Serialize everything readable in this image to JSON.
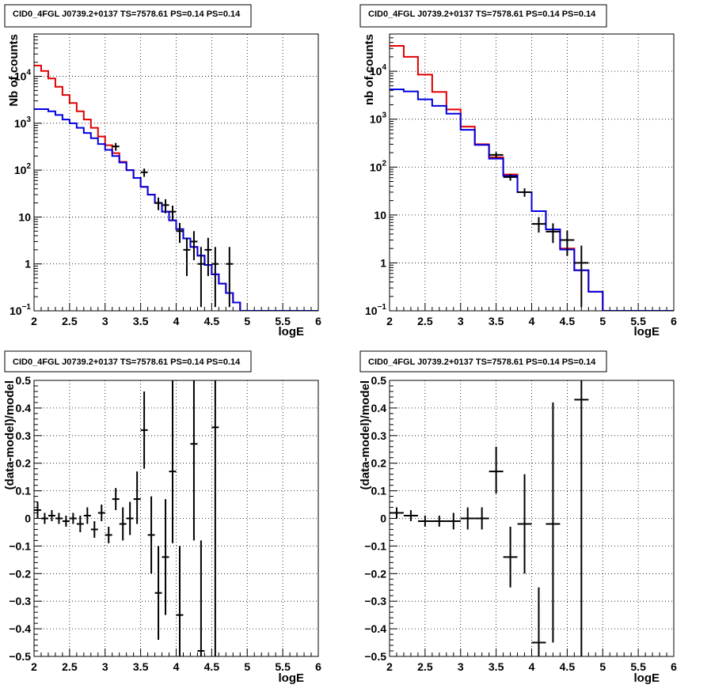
{
  "chart_data": [
    {
      "type": "line",
      "title": "CID0_4FGL J0739.2+0137 TS=7578.61 PS=0.14 PS=0.14",
      "xlabel": "logE",
      "ylabel": "Nb of counts",
      "xscale": "linear",
      "yscale": "log",
      "xlim": [
        2,
        6
      ],
      "ylim": [
        0.1,
        80000
      ],
      "grid": true,
      "xticks": [
        "2",
        "2.5",
        "3",
        "3.5",
        "4",
        "4.5",
        "5",
        "5.5",
        "6"
      ],
      "yticks": [
        {
          "value": 0.1,
          "label": "10",
          "sup": "−1"
        },
        {
          "value": 1,
          "label": "1",
          "sup": ""
        },
        {
          "value": 10,
          "label": "10",
          "sup": ""
        },
        {
          "value": 100,
          "label": "10",
          "sup": "2"
        },
        {
          "value": 1000,
          "label": "10",
          "sup": "3"
        },
        {
          "value": 10000,
          "label": "10",
          "sup": "4"
        }
      ],
      "series": [
        {
          "kind": "step",
          "color": "#e00000",
          "x_edges": [
            2.0,
            2.1,
            2.2,
            2.3,
            2.4,
            2.5,
            2.6,
            2.7,
            2.8,
            2.9,
            3.0,
            3.1,
            3.2,
            3.3,
            3.4,
            3.5,
            3.6,
            3.7,
            3.8,
            3.9,
            4.0,
            4.1,
            4.2,
            4.3,
            4.4,
            4.5,
            4.6,
            4.7,
            4.8,
            4.9,
            5.0,
            5.1,
            5.2,
            5.3,
            5.4,
            5.5,
            5.6,
            5.7,
            5.8,
            5.9,
            6.0
          ],
          "values": [
            17000,
            13000,
            9000,
            6000,
            4000,
            2700,
            1800,
            1200,
            800,
            520,
            340,
            230,
            150,
            100,
            68,
            44,
            30,
            20,
            13,
            8.5,
            5.5,
            3.5,
            2.3,
            1.5,
            0.95,
            0.6,
            0.38,
            0.24,
            0.15,
            0.09,
            0.09,
            0.09,
            0.09,
            0.09,
            0.09,
            0.09,
            0.09,
            0.09,
            0.09,
            0.09
          ]
        },
        {
          "kind": "step",
          "color": "#0000e0",
          "x_edges": [
            2.0,
            2.1,
            2.2,
            2.3,
            2.4,
            2.5,
            2.6,
            2.7,
            2.8,
            2.9,
            3.0,
            3.1,
            3.2,
            3.3,
            3.4,
            3.5,
            3.6,
            3.7,
            3.8,
            3.9,
            4.0,
            4.1,
            4.2,
            4.3,
            4.4,
            4.5,
            4.6,
            4.7,
            4.8,
            4.9,
            5.0,
            5.1,
            5.2,
            5.3,
            5.4,
            5.5,
            5.6,
            5.7,
            5.8,
            5.9,
            6.0
          ],
          "values": [
            2000,
            2000,
            1800,
            1500,
            1200,
            1000,
            800,
            620,
            480,
            360,
            270,
            200,
            145,
            100,
            68,
            44,
            30,
            20,
            13,
            8.5,
            5.5,
            3.5,
            2.3,
            1.5,
            0.95,
            0.6,
            0.38,
            0.24,
            0.15,
            0.1,
            0.1,
            0.1,
            0.1,
            0.1,
            0.1,
            0.1,
            0.1,
            0.1,
            0.1,
            0.1
          ]
        },
        {
          "kind": "errorbar",
          "color": "#000000",
          "x": [
            3.15,
            3.55,
            3.75,
            3.85,
            3.95,
            4.05,
            4.15,
            4.25,
            4.35,
            4.45,
            4.55,
            4.75
          ],
          "xerr": 0.05,
          "y": [
            320,
            90,
            20,
            18,
            13,
            5,
            2,
            3,
            1,
            2,
            1,
            1
          ],
          "ylo": [
            260,
            72,
            14,
            12,
            8.5,
            2.8,
            0.55,
            1.2,
            0.12,
            0.55,
            0.12,
            0.12
          ],
          "yhi": [
            380,
            108,
            26,
            24,
            17.5,
            7.5,
            3.6,
            5,
            2.3,
            3.6,
            2.3,
            2.3
          ]
        }
      ]
    },
    {
      "type": "line",
      "title": "CID0_4FGL J0739.2+0137 TS=7578.61 PS=0.14 PS=0.14",
      "xlabel": "logE",
      "ylabel": "nb of counts",
      "xscale": "linear",
      "yscale": "log",
      "xlim": [
        2,
        6
      ],
      "ylim": [
        0.1,
        60000
      ],
      "grid": true,
      "xticks": [
        "2",
        "2.5",
        "3",
        "3.5",
        "4",
        "4.5",
        "5",
        "5.5",
        "6"
      ],
      "yticks": [
        {
          "value": 0.1,
          "label": "10",
          "sup": "−1"
        },
        {
          "value": 1,
          "label": "1",
          "sup": ""
        },
        {
          "value": 10,
          "label": "10",
          "sup": ""
        },
        {
          "value": 100,
          "label": "10",
          "sup": "2"
        },
        {
          "value": 1000,
          "label": "10",
          "sup": "3"
        },
        {
          "value": 10000,
          "label": "10",
          "sup": "4"
        }
      ],
      "series": [
        {
          "kind": "step",
          "color": "#e00000",
          "x_edges": [
            2.0,
            2.2,
            2.4,
            2.6,
            2.8,
            3.0,
            3.2,
            3.4,
            3.6,
            3.8,
            4.0,
            4.2,
            4.4,
            4.6,
            4.8,
            5.0,
            5.2,
            5.4,
            5.6,
            5.8,
            6.0
          ],
          "values": [
            34000,
            20000,
            8500,
            3700,
            1600,
            700,
            300,
            160,
            70,
            30,
            12,
            5,
            2,
            0.7,
            0.25,
            0.09,
            0.09,
            0.09,
            0.09,
            0.09
          ]
        },
        {
          "kind": "step",
          "color": "#0000e0",
          "x_edges": [
            2.0,
            2.2,
            2.4,
            2.6,
            2.8,
            3.0,
            3.2,
            3.4,
            3.6,
            3.8,
            4.0,
            4.2,
            4.4,
            4.6,
            4.8,
            5.0,
            5.2,
            5.4,
            5.6,
            5.8,
            6.0
          ],
          "values": [
            4200,
            3800,
            2600,
            1900,
            1300,
            600,
            290,
            150,
            66,
            30,
            12,
            5,
            1.9,
            0.7,
            0.25,
            0.1,
            0.1,
            0.1,
            0.1,
            0.1
          ]
        },
        {
          "kind": "errorbar",
          "color": "#000000",
          "x": [
            3.5,
            3.7,
            3.9,
            4.1,
            4.3,
            4.5,
            4.7
          ],
          "xerr": 0.1,
          "y": [
            180,
            62,
            30,
            6.5,
            4.5,
            3,
            1
          ],
          "ylo": [
            155,
            52,
            24,
            4.3,
            2.6,
            1.4,
            0.12
          ],
          "yhi": [
            205,
            72,
            36,
            9,
            6.7,
            4.7,
            2.3
          ]
        }
      ]
    },
    {
      "type": "scatter",
      "title": "CID0_4FGL J0739.2+0137 TS=7578.61 PS=0.14 PS=0.14",
      "xlabel": "logE",
      "ylabel": "(data-model)/model",
      "xscale": "linear",
      "yscale": "linear",
      "xlim": [
        2,
        6
      ],
      "ylim": [
        -0.5,
        0.5
      ],
      "grid": true,
      "xticks": [
        "2",
        "2.5",
        "3",
        "3.5",
        "4",
        "4.5",
        "5",
        "5.5",
        "6"
      ],
      "yticks": [
        {
          "value": -0.5,
          "label": "−0.5"
        },
        {
          "value": -0.4,
          "label": "−0.4"
        },
        {
          "value": -0.3,
          "label": "−0.3"
        },
        {
          "value": -0.2,
          "label": "−0.2"
        },
        {
          "value": -0.1,
          "label": "−0.1"
        },
        {
          "value": 0,
          "label": "0"
        },
        {
          "value": 0.1,
          "label": "0.1"
        },
        {
          "value": 0.2,
          "label": "0.2"
        },
        {
          "value": 0.3,
          "label": "0.3"
        },
        {
          "value": 0.4,
          "label": "0.4"
        },
        {
          "value": 0.5,
          "label": "0.5"
        }
      ],
      "series": [
        {
          "kind": "errorbar",
          "color": "#000000",
          "x": [
            2.05,
            2.15,
            2.25,
            2.35,
            2.45,
            2.55,
            2.65,
            2.75,
            2.85,
            2.95,
            3.05,
            3.15,
            3.25,
            3.35,
            3.45,
            3.55,
            3.65,
            3.75,
            3.85,
            3.95,
            4.05,
            4.25,
            4.35,
            4.55
          ],
          "xerr": 0.05,
          "y": [
            0.03,
            0.0,
            0.01,
            0.0,
            -0.01,
            0.0,
            -0.02,
            0.01,
            -0.04,
            0.02,
            -0.06,
            0.07,
            -0.02,
            0.0,
            0.07,
            0.32,
            -0.06,
            -0.27,
            -0.14,
            0.17,
            -0.35,
            0.27,
            -0.48,
            0.33
          ],
          "ylo": [
            0.0,
            -0.02,
            -0.01,
            -0.02,
            -0.03,
            -0.02,
            -0.05,
            -0.02,
            -0.07,
            -0.01,
            -0.09,
            0.03,
            -0.08,
            -0.06,
            -0.02,
            0.18,
            -0.2,
            -0.44,
            -0.35,
            -0.09,
            -0.6,
            -0.08,
            -0.6,
            -0.6
          ],
          "yhi": [
            0.06,
            0.02,
            0.03,
            0.02,
            0.01,
            0.02,
            0.01,
            0.04,
            -0.01,
            0.05,
            -0.03,
            0.11,
            0.04,
            0.06,
            0.17,
            0.46,
            0.08,
            -0.1,
            0.07,
            0.5,
            -0.1,
            0.6,
            -0.08,
            0.6
          ]
        }
      ]
    },
    {
      "type": "scatter",
      "title": "CID0_4FGL J0739.2+0137 TS=7578.61 PS=0.14 PS=0.14",
      "xlabel": "logE",
      "ylabel": "(data-model)/model",
      "xscale": "linear",
      "yscale": "linear",
      "xlim": [
        2,
        6
      ],
      "ylim": [
        -0.5,
        0.5
      ],
      "grid": true,
      "xticks": [
        "2",
        "2.5",
        "3",
        "3.5",
        "4",
        "4.5",
        "5",
        "5.5",
        "6"
      ],
      "yticks": [
        {
          "value": -0.5,
          "label": "−0.5"
        },
        {
          "value": -0.4,
          "label": "−0.4"
        },
        {
          "value": -0.3,
          "label": "−0.3"
        },
        {
          "value": -0.2,
          "label": "−0.2"
        },
        {
          "value": -0.1,
          "label": "−0.1"
        },
        {
          "value": 0,
          "label": "0"
        },
        {
          "value": 0.1,
          "label": "0.1"
        },
        {
          "value": 0.2,
          "label": "0.2"
        },
        {
          "value": 0.3,
          "label": "0.3"
        },
        {
          "value": 0.4,
          "label": "0.4"
        },
        {
          "value": 0.5,
          "label": "0.5"
        }
      ],
      "series": [
        {
          "kind": "errorbar",
          "color": "#000000",
          "x": [
            2.1,
            2.3,
            2.5,
            2.7,
            2.9,
            3.1,
            3.3,
            3.5,
            3.7,
            3.9,
            4.1,
            4.3,
            4.7
          ],
          "xerr": 0.1,
          "y": [
            0.02,
            0.01,
            -0.01,
            -0.01,
            -0.01,
            0.0,
            0.0,
            0.17,
            -0.14,
            -0.02,
            -0.45,
            -0.02,
            0.43
          ],
          "ylo": [
            0.0,
            -0.01,
            -0.03,
            -0.03,
            -0.04,
            -0.04,
            -0.04,
            0.09,
            -0.25,
            -0.2,
            -0.6,
            -0.45,
            -0.6
          ],
          "yhi": [
            0.04,
            0.03,
            0.01,
            0.01,
            0.02,
            0.04,
            0.04,
            0.26,
            -0.03,
            0.16,
            -0.25,
            0.42,
            0.6
          ]
        }
      ]
    }
  ]
}
